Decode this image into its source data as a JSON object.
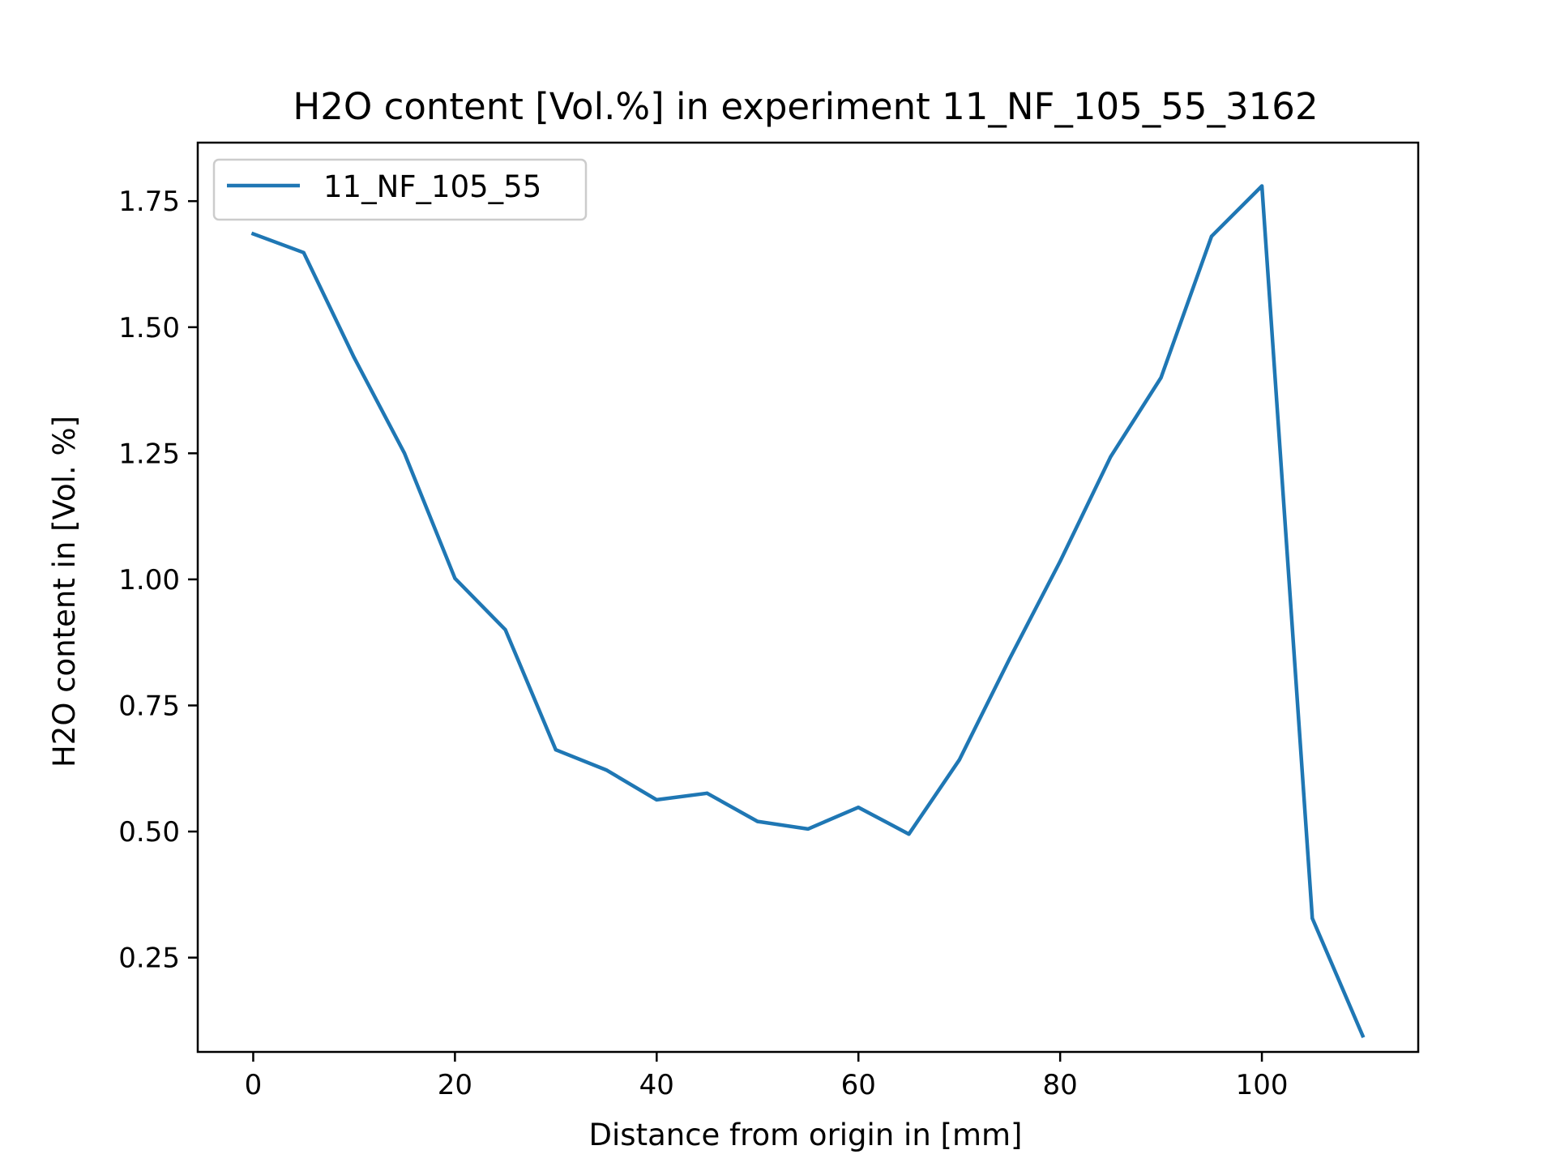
{
  "chart_data": {
    "type": "line",
    "title": "H2O content [Vol.%] in experiment 11_NF_105_55_3162",
    "xlabel": "Distance from origin in [mm]",
    "ylabel": "H2O content in [Vol. %]",
    "xlim": [
      -5.5,
      115.5
    ],
    "ylim": [
      0.063,
      1.866
    ],
    "xticks": [
      0,
      20,
      40,
      60,
      80,
      100
    ],
    "xtick_labels": [
      "0",
      "20",
      "40",
      "60",
      "80",
      "100"
    ],
    "yticks": [
      0.25,
      0.5,
      0.75,
      1.0,
      1.25,
      1.5,
      1.75
    ],
    "ytick_labels": [
      "0.25",
      "0.50",
      "0.75",
      "1.00",
      "1.25",
      "1.50",
      "1.75"
    ],
    "grid": false,
    "legend_position": "top-left",
    "series": [
      {
        "name": "11_NF_105_55",
        "color": "#1f77b4",
        "x": [
          0,
          5,
          10,
          15,
          20,
          25,
          30,
          35,
          40,
          45,
          50,
          55,
          60,
          65,
          70,
          75,
          80,
          85,
          90,
          95,
          100,
          105,
          110
        ],
        "y": [
          1.685,
          1.648,
          1.44,
          1.25,
          1.002,
          0.9,
          0.662,
          0.622,
          0.563,
          0.576,
          0.52,
          0.505,
          0.548,
          0.495,
          0.642,
          0.843,
          1.036,
          1.243,
          1.4,
          1.68,
          1.78,
          0.328,
          0.095
        ]
      }
    ]
  }
}
